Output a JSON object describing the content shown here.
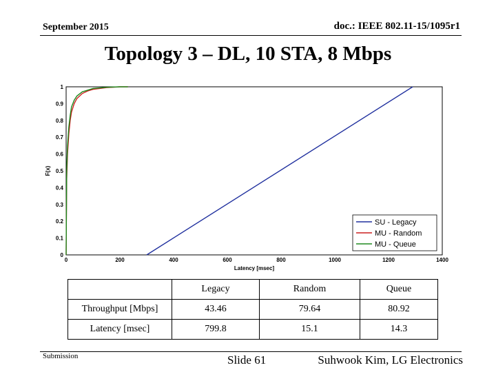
{
  "header": {
    "date": "September 2015",
    "doc_id": "doc.: IEEE 802.11-15/1095r1"
  },
  "title": "Topology 3 – DL, 10 STA, 8 Mbps",
  "chart_data": {
    "type": "line",
    "xlabel": "Latency [msec]",
    "ylabel": "F(x)",
    "xlim": [
      0,
      1400
    ],
    "ylim": [
      0,
      1
    ],
    "xticks": [
      0,
      200,
      400,
      600,
      800,
      1000,
      1200,
      1400
    ],
    "yticks": [
      0,
      0.1,
      0.2,
      0.3,
      0.4,
      0.5,
      0.6,
      0.7,
      0.8,
      0.9,
      1
    ],
    "grid": true,
    "legend": "bottom-right",
    "series": [
      {
        "name": "SU - Legacy",
        "color": "#1f2f9e",
        "x": [
          300,
          1290
        ],
        "y": [
          0,
          1
        ]
      },
      {
        "name": "MU - Random",
        "color": "#cc1f1f",
        "x": [
          0,
          2,
          5,
          10,
          15,
          20,
          30,
          40,
          60,
          80,
          100,
          150,
          200,
          230
        ],
        "y": [
          0,
          0.45,
          0.6,
          0.72,
          0.8,
          0.85,
          0.9,
          0.93,
          0.96,
          0.975,
          0.985,
          0.995,
          1,
          1
        ]
      },
      {
        "name": "MU - Queue",
        "color": "#1e8a1e",
        "x": [
          0,
          2,
          5,
          10,
          15,
          20,
          30,
          40,
          60,
          80,
          100,
          150,
          200,
          230
        ],
        "y": [
          0,
          0.5,
          0.65,
          0.76,
          0.83,
          0.88,
          0.92,
          0.945,
          0.97,
          0.98,
          0.99,
          0.997,
          1,
          1
        ]
      }
    ]
  },
  "table": {
    "headers": [
      "",
      "Legacy",
      "Random",
      "Queue"
    ],
    "rows": [
      {
        "label": "Throughput [Mbps]",
        "values": [
          "43.46",
          "79.64",
          "80.92"
        ]
      },
      {
        "label": "Latency [msec]",
        "values": [
          "799.8",
          "15.1",
          "14.3"
        ]
      }
    ]
  },
  "footer": {
    "left": "Submission",
    "center": "Slide 61",
    "right": "Suhwook Kim, LG Electronics"
  }
}
